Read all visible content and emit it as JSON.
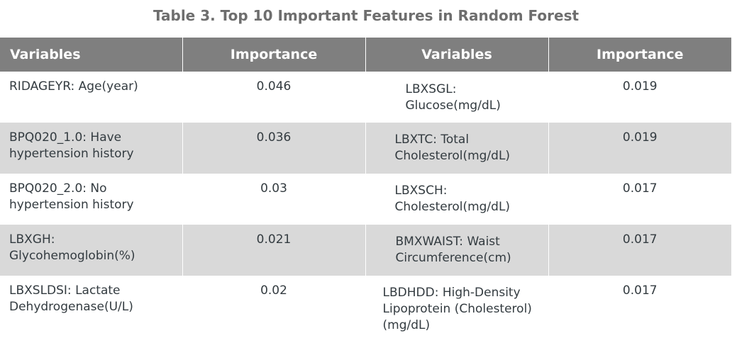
{
  "title": "Table 3. Top 10 Important Features in Random Forest",
  "headers": [
    "Variables",
    "Importance",
    "Variables",
    "Importance"
  ],
  "rows": [
    {
      "var1": "RIDAGEYR: Age(year)",
      "imp1": "0.046",
      "var2": "LBXSGL: Glucose(mg/dL)",
      "imp2": "0.019"
    },
    {
      "var1": "BPQ020_1.0: Have hypertension history",
      "imp1": "0.036",
      "var2": "LBXTC: Total Cholesterol(mg/dL)",
      "imp2": "0.019"
    },
    {
      "var1": "BPQ020_2.0: No hypertension history",
      "imp1": "0.03",
      "var2": "LBXSCH: Cholesterol(mg/dL)",
      "imp2": "0.017"
    },
    {
      "var1": "LBXGH: Glycohemoglobin(%)",
      "imp1": "0.021",
      "var2": "BMXWAIST: Waist Circumference(cm)",
      "imp2": "0.017"
    },
    {
      "var1": "LBXSLDSI: Lactate Dehydrogenase(U/L)",
      "imp1": "0.02",
      "var2": "LBDHDD: High-Density Lipoprotein (Cholesterol)(mg/dL)",
      "imp2": "0.017"
    }
  ]
}
